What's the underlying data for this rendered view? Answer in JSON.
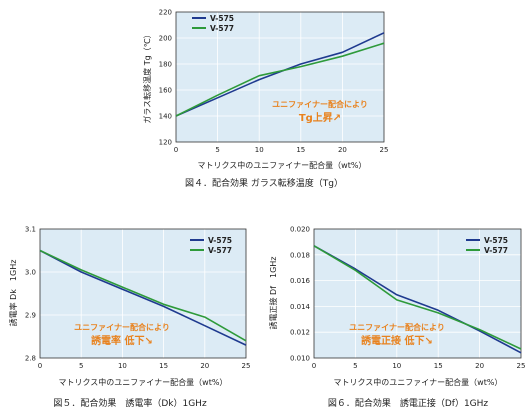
{
  "colors": {
    "plot_bg": "#dcebf5",
    "v575": "#1f3a8f",
    "v577": "#2e9a3a",
    "annot": "#e8821e",
    "grid": "#ffffff"
  },
  "chart_data": [
    {
      "type": "line",
      "caption": "図４．配合効果 ガラス転移温度（Tg）",
      "xlabel": "マトリクス中のユニファイナー配合量（wt%）",
      "ylabel": "ガラス転移温度 Tg（℃）",
      "xlim": [
        0,
        25
      ],
      "ylim": [
        120,
        220
      ],
      "xticks": [
        0,
        5,
        10,
        15,
        20,
        25
      ],
      "yticks": [
        120,
        140,
        160,
        180,
        200,
        220
      ],
      "legend_position": "top-left",
      "annotation": [
        "ユニファイナー配合により",
        "Tg上昇↗"
      ],
      "series": [
        {
          "name": "V-575",
          "x": [
            0,
            5,
            10,
            15,
            20,
            25
          ],
          "y": [
            140,
            154,
            168,
            180,
            189,
            204
          ]
        },
        {
          "name": "V-577",
          "x": [
            0,
            5,
            10,
            15,
            20,
            25
          ],
          "y": [
            140,
            156,
            171,
            178,
            186,
            196
          ]
        }
      ]
    },
    {
      "type": "line",
      "caption": "図５．配合効果　誘電率（Dk）1GHz",
      "xlabel": "マトリクス中のユニファイナー配合量（wt%）",
      "ylabel": "誘電率 Dk　1GHz",
      "xlim": [
        0,
        25
      ],
      "ylim": [
        2.8,
        3.1
      ],
      "xticks": [
        0,
        5,
        10,
        15,
        20,
        25
      ],
      "yticks": [
        2.8,
        2.9,
        3.0,
        3.1
      ],
      "ytick_labels": [
        "2.8",
        "2.9",
        "3.0",
        "3.1"
      ],
      "legend_position": "top-right",
      "annotation": [
        "ユニファイナー配合により",
        "誘電率 低下↘"
      ],
      "series": [
        {
          "name": "V-575",
          "x": [
            0,
            5,
            10,
            15,
            20,
            25
          ],
          "y": [
            3.05,
            3.0,
            2.96,
            2.92,
            2.875,
            2.83
          ]
        },
        {
          "name": "V-577",
          "x": [
            0,
            5,
            10,
            15,
            20,
            25
          ],
          "y": [
            3.05,
            3.005,
            2.965,
            2.925,
            2.895,
            2.84
          ]
        }
      ]
    },
    {
      "type": "line",
      "caption": "図６．配合効果　誘電正接（Df）1GHz",
      "xlabel": "マトリクス中のユニファイナー配合量（wt%）",
      "ylabel": "誘電正接 Df　1GHz",
      "xlim": [
        0,
        25
      ],
      "ylim": [
        0.01,
        0.02
      ],
      "xticks": [
        0,
        5,
        10,
        15,
        20,
        25
      ],
      "yticks": [
        0.01,
        0.012,
        0.014,
        0.016,
        0.018,
        0.02
      ],
      "ytick_labels": [
        "0.010",
        "0.012",
        "0.014",
        "0.016",
        "0.018",
        "0.020"
      ],
      "legend_position": "top-right",
      "annotation": [
        "ユニファイナー配合により",
        "誘電正接 低下↘"
      ],
      "series": [
        {
          "name": "V-575",
          "x": [
            0,
            5,
            10,
            15,
            20,
            25
          ],
          "y": [
            0.0187,
            0.0169,
            0.0149,
            0.0137,
            0.0121,
            0.0104
          ]
        },
        {
          "name": "V-577",
          "x": [
            0,
            5,
            10,
            15,
            20,
            25
          ],
          "y": [
            0.0187,
            0.0168,
            0.0145,
            0.0135,
            0.0122,
            0.0107
          ]
        }
      ]
    }
  ]
}
